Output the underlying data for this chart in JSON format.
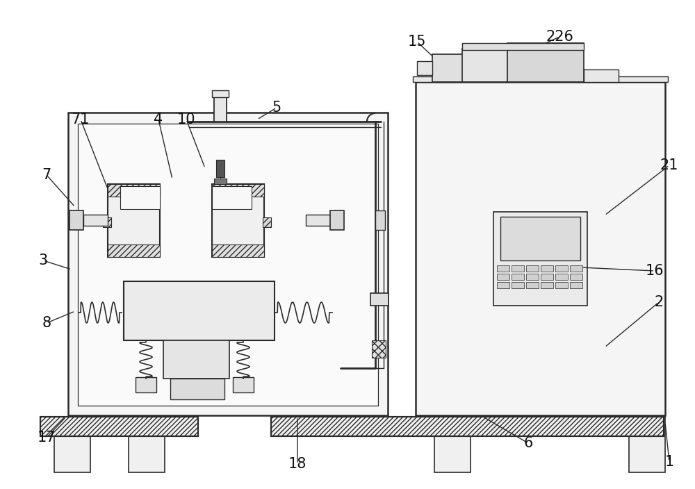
{
  "bg_color": "#ffffff",
  "line_color": "#2a2a2a",
  "fig_w": 10.0,
  "fig_h": 7.04,
  "dpi": 100,
  "labels_data": [
    [
      "1",
      963,
      665,
      957,
      608
    ],
    [
      "2",
      948,
      435,
      870,
      500
    ],
    [
      "3",
      62,
      375,
      103,
      388
    ],
    [
      "4",
      228,
      172,
      248,
      258
    ],
    [
      "5",
      398,
      155,
      370,
      172
    ],
    [
      "6",
      760,
      638,
      695,
      600
    ],
    [
      "7",
      67,
      252,
      108,
      298
    ],
    [
      "8",
      67,
      465,
      108,
      448
    ],
    [
      "10",
      268,
      172,
      295,
      242
    ],
    [
      "15",
      600,
      60,
      632,
      90
    ],
    [
      "16",
      942,
      390,
      835,
      385
    ],
    [
      "17",
      67,
      630,
      95,
      600
    ],
    [
      "18",
      428,
      668,
      428,
      600
    ],
    [
      "21",
      963,
      238,
      870,
      310
    ],
    [
      "71",
      116,
      172,
      155,
      272
    ],
    [
      "226",
      805,
      53,
      768,
      70
    ]
  ]
}
